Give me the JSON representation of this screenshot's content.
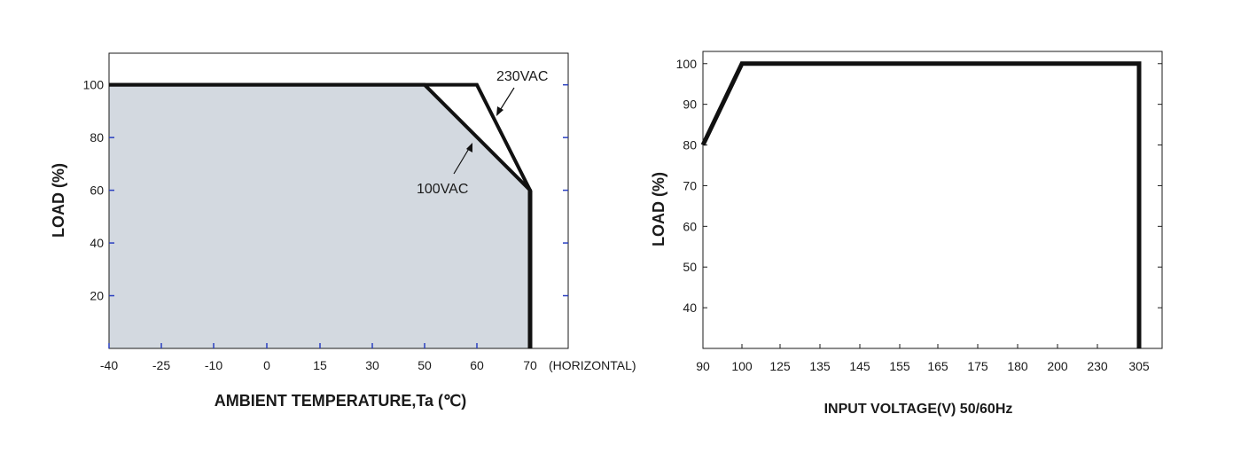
{
  "chart_data": [
    {
      "type": "line",
      "xlabel": "AMBIENT TEMPERATURE,Ta (℃)",
      "ylabel": "LOAD (%)",
      "x_ticks": [
        "-40",
        "-25",
        "-10",
        "0",
        "15",
        "30",
        "50",
        "60",
        "70"
      ],
      "x_tick_suffix": "(HORIZONTAL)",
      "y_ticks": [
        "20",
        "40",
        "60",
        "80",
        "100"
      ],
      "ylim": [
        0,
        112
      ],
      "filled_region_color": "#d3d9e0",
      "series": [
        {
          "name": "230VAC",
          "points": [
            [
              "-40",
              100
            ],
            [
              "60",
              100
            ],
            [
              "70",
              60
            ],
            [
              "70",
              0
            ]
          ]
        },
        {
          "name": "100VAC",
          "points": [
            [
              "-40",
              100
            ],
            [
              "50",
              100
            ],
            [
              "70",
              60
            ],
            [
              "70",
              0
            ]
          ]
        }
      ],
      "annotations": [
        "230VAC",
        "100VAC"
      ]
    },
    {
      "type": "line",
      "xlabel": "INPUT VOLTAGE(V) 50/60Hz",
      "ylabel": "LOAD (%)",
      "x_ticks": [
        "90",
        "100",
        "125",
        "135",
        "145",
        "155",
        "165",
        "175",
        "180",
        "200",
        "230",
        "305"
      ],
      "y_ticks": [
        "40",
        "50",
        "60",
        "70",
        "80",
        "90",
        "100"
      ],
      "ylim": [
        30,
        103
      ],
      "series": [
        {
          "points": [
            [
              "90",
              80
            ],
            [
              "100",
              100
            ],
            [
              "305",
              100
            ],
            [
              "305",
              30
            ]
          ]
        }
      ]
    }
  ]
}
